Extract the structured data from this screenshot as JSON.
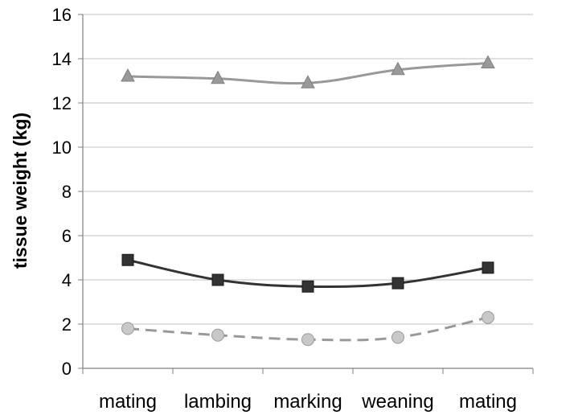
{
  "chart_data": {
    "type": "line",
    "title": "",
    "xlabel": "",
    "ylabel": "tissue weight (kg)",
    "categories": [
      "mating",
      "lambing",
      "marking",
      "weaning",
      "mating"
    ],
    "ylim": [
      0,
      16
    ],
    "yticks": [
      0,
      2,
      4,
      6,
      8,
      10,
      12,
      14,
      16
    ],
    "grid": true,
    "legend": "none",
    "series": [
      {
        "values": [
          13.2,
          13.1,
          12.9,
          13.5,
          13.8
        ],
        "color": "#999999",
        "marker": "triangle",
        "dashed": false
      },
      {
        "values": [
          4.9,
          4.0,
          3.7,
          3.85,
          4.55
        ],
        "color": "#333333",
        "marker": "square",
        "dashed": false
      },
      {
        "values": [
          1.8,
          1.5,
          1.3,
          1.4,
          2.3
        ],
        "color": "#999999",
        "marker": "circle",
        "dashed": true,
        "marker_fill": "#c8c8c8"
      }
    ]
  }
}
